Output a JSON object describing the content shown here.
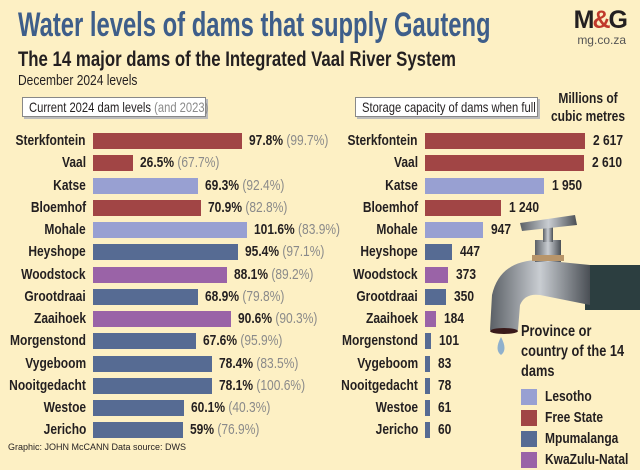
{
  "title": "Water levels of dams that supply Gauteng",
  "subtitle": "The 14 major dams of the Integrated Vaal River System",
  "date_label": "December 2024 levels",
  "logo": {
    "text": "M&G",
    "url_text": "mg.co.za"
  },
  "footer": "Graphic: JOHN McCANN  Data source: DWS",
  "colors": {
    "Lesotho": "#98a0d2",
    "Free State": "#a14545",
    "Mpumalanga": "#566b93",
    "KwaZulu-Natal": "#9a63a7",
    "title": "#3e5e8a"
  },
  "chart_data": [
    {
      "type": "bar",
      "orientation": "horizontal",
      "title": "Current 2024 dam levels",
      "title_suffix": "(and 2023)",
      "unit": "%",
      "categories": [
        "Sterkfontein",
        "Vaal",
        "Katse",
        "Bloemhof",
        "Mohale",
        "Heyshope",
        "Woodstock",
        "Grootdraai",
        "Zaaihoek",
        "Morgenstond",
        "Vygeboom",
        "Nooitgedacht",
        "Westoe",
        "Jericho"
      ],
      "series": [
        {
          "name": "2024",
          "values": [
            97.8,
            26.5,
            69.3,
            70.9,
            101.6,
            95.4,
            88.1,
            68.9,
            90.6,
            67.6,
            78.4,
            78.1,
            60.1,
            59
          ]
        },
        {
          "name": "2023",
          "values": [
            99.7,
            67.7,
            92.4,
            82.8,
            83.9,
            97.1,
            89.2,
            79.8,
            90.3,
            95.9,
            83.5,
            100.6,
            40.3,
            76.9
          ]
        }
      ],
      "labels_2024": [
        "97.8%",
        "26.5%",
        "69.3%",
        "70.9%",
        "101.6%",
        "95.4%",
        "88.1%",
        "68.9%",
        "90.6%",
        "67.6%",
        "78.4%",
        "78.1%",
        "60.1%",
        "59%"
      ],
      "labels_2023": [
        "(99.7%)",
        "(67.7%)",
        "(92.4%)",
        "(82.8%)",
        "(83.9%)",
        "(97.1%)",
        "(89.2%)",
        "(79.8%)",
        "(90.3%)",
        "(95.9%)",
        "(83.5%)",
        "(100.6%)",
        "(40.3%)",
        "(76.9%)"
      ],
      "province": [
        "Free State",
        "Free State",
        "Lesotho",
        "Free State",
        "Lesotho",
        "Mpumalanga",
        "KwaZulu-Natal",
        "Mpumalanga",
        "KwaZulu-Natal",
        "Mpumalanga",
        "Mpumalanga",
        "Mpumalanga",
        "Mpumalanga",
        "Mpumalanga"
      ]
    },
    {
      "type": "bar",
      "orientation": "horizontal",
      "title": "Storage capacity of dams when full",
      "unit_label": "Millions of cubic metres",
      "categories": [
        "Sterkfontein",
        "Vaal",
        "Katse",
        "Bloemhof",
        "Mohale",
        "Heyshope",
        "Woodstock",
        "Grootdraai",
        "Zaaihoek",
        "Morgenstond",
        "Vygeboom",
        "Nooitgedacht",
        "Westoe",
        "Jericho"
      ],
      "values": [
        2617,
        2610,
        1950,
        1240,
        947,
        447,
        373,
        350,
        184,
        101,
        83,
        78,
        61,
        60
      ],
      "labels": [
        "2 617",
        "2 610",
        "1 950",
        "1 240",
        "947",
        "447",
        "373",
        "350",
        "184",
        "101",
        "83",
        "78",
        "61",
        "60"
      ]
    }
  ],
  "legend": {
    "title": "Province or country of the 14 dams",
    "items": [
      "Lesotho",
      "Free State",
      "Mpumalanga",
      "KwaZulu-Natal"
    ]
  }
}
